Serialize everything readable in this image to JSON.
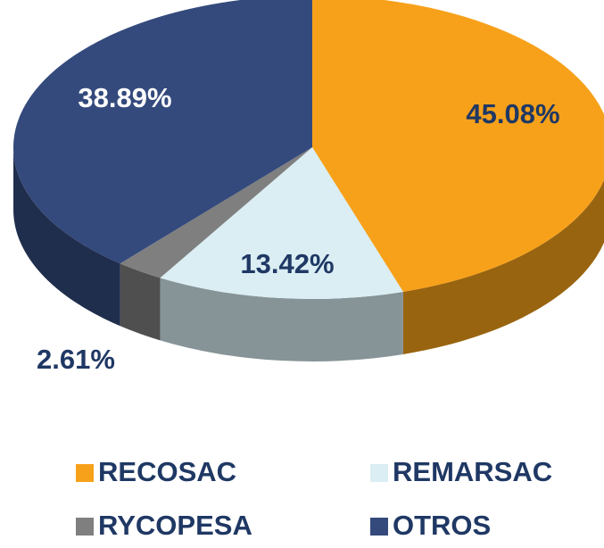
{
  "chart_data": {
    "type": "pie3d",
    "categories": [
      "RECOSAC",
      "REMARSAC",
      "RYCOPESA",
      "OTROS"
    ],
    "values": [
      45.08,
      13.42,
      2.61,
      38.89
    ],
    "value_labels": [
      "45.08%",
      "13.42%",
      "2.61%",
      "38.89%"
    ],
    "colors": [
      "#f7a11a",
      "#daeef3",
      "#7f7f7f",
      "#344a7c"
    ],
    "legend": "bottom"
  }
}
